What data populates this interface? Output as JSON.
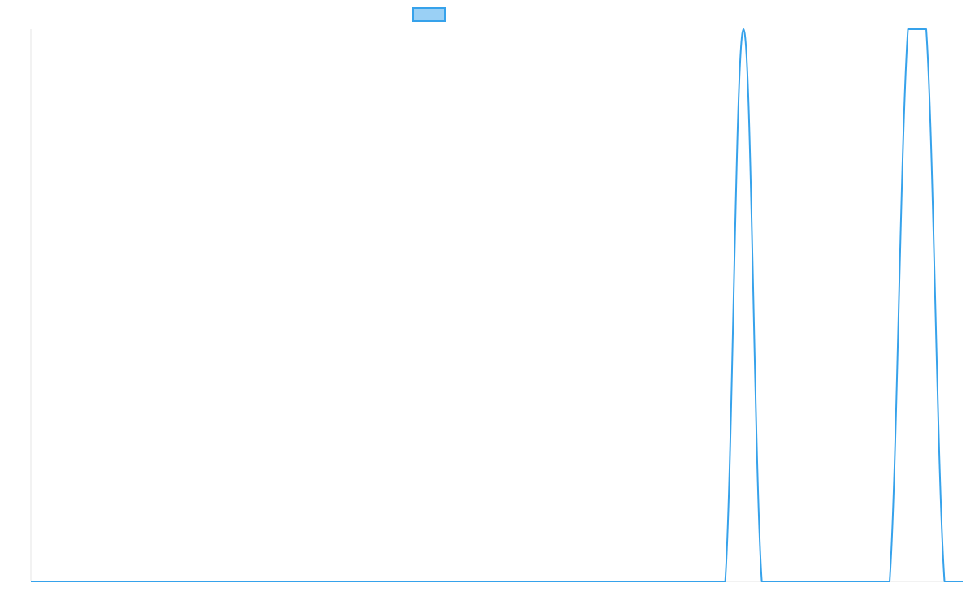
{
  "chart_data": {
    "type": "line",
    "title": "",
    "xlabel": "",
    "ylabel": "",
    "grid": false,
    "legend": "top-center",
    "series": [
      {
        "color": "#36a2eb",
        "fill": "#9ad0f5",
        "values": [
          0,
          0,
          0,
          0,
          0,
          0,
          0,
          0,
          0,
          0,
          0,
          0,
          0,
          0,
          0,
          0,
          0,
          0,
          0,
          0,
          0,
          0,
          0,
          0,
          0,
          0,
          0,
          0,
          0,
          0,
          0,
          0,
          0,
          0,
          0,
          0,
          0,
          0,
          0,
          1,
          0,
          0,
          0,
          0,
          0,
          0,
          0,
          0,
          1,
          1,
          0,
          0
        ]
      }
    ],
    "ylim": [
      0,
      1
    ]
  }
}
